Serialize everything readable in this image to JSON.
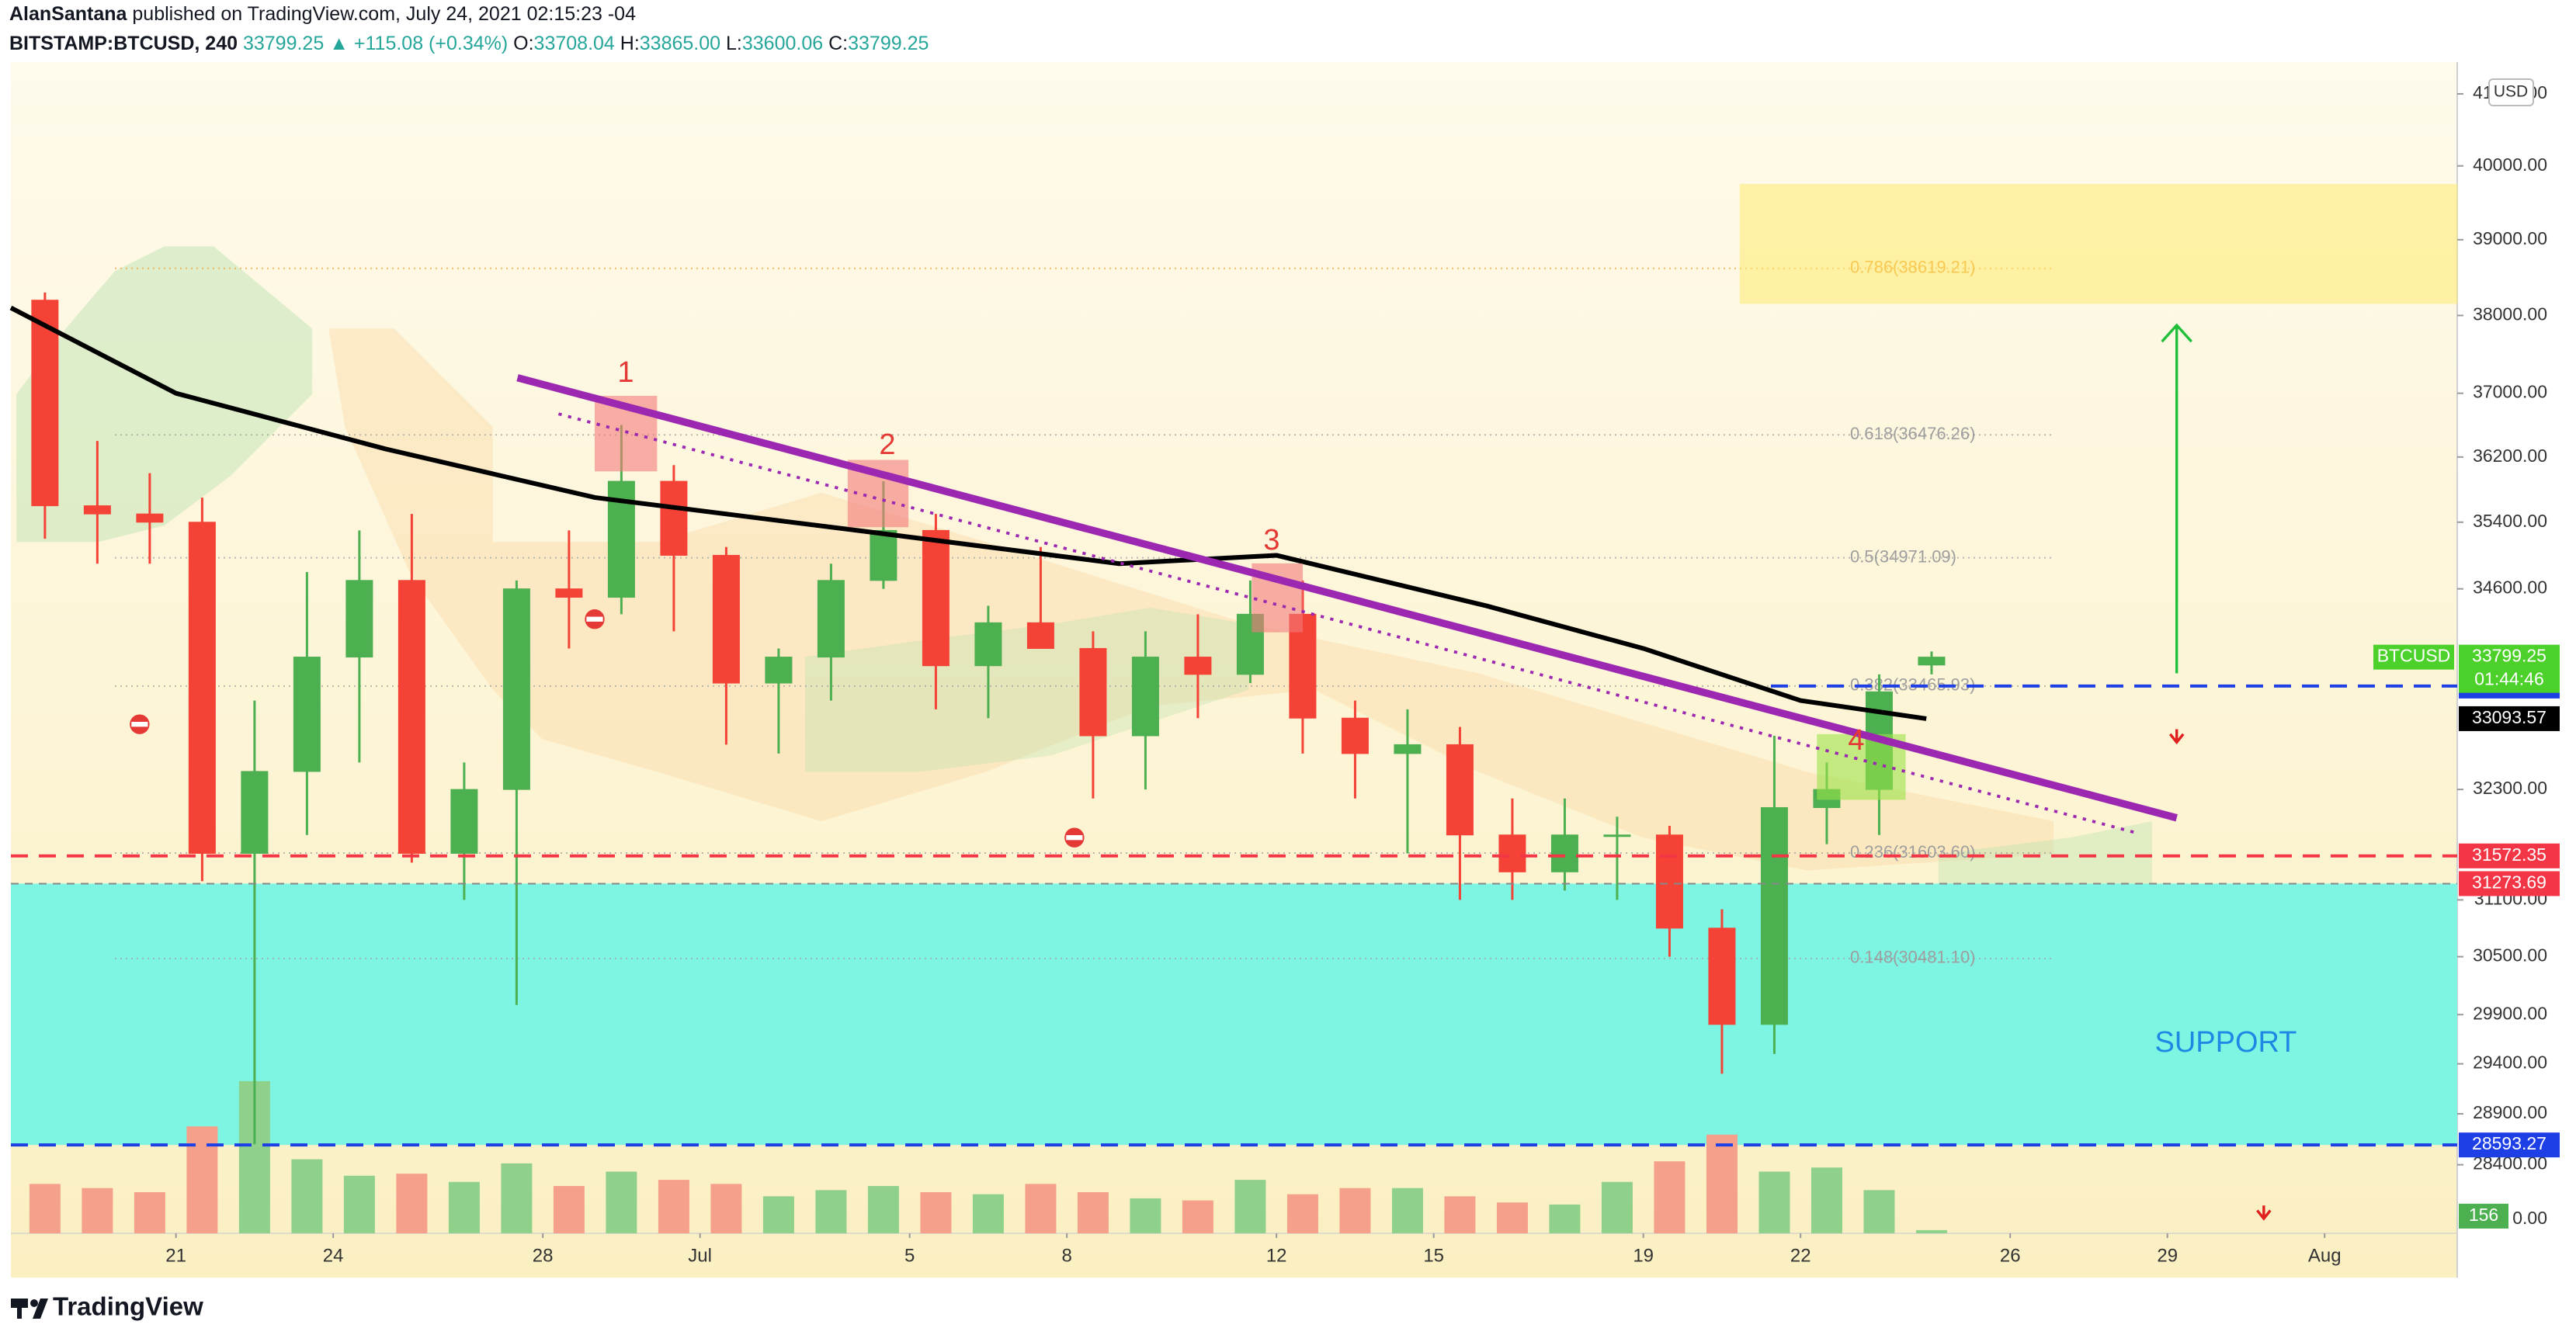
{
  "header": {
    "author": "AlanSantana",
    "published": "published on TradingView.com, July 24, 2021 02:15:23 -04",
    "symbol": "BITSTAMP:BTCUSD, 240",
    "last": "33799.25",
    "change": "▲ +115.08 (+0.34%)",
    "ohlc": [
      {
        "key": "O:",
        "value": "33708.04"
      },
      {
        "key": "H:",
        "value": "33865.00"
      },
      {
        "key": "L:",
        "value": "33600.06"
      },
      {
        "key": "C:",
        "value": "33799.25"
      }
    ]
  },
  "chart_data": {
    "type": "candlestick",
    "log_scale": true,
    "currency": "USD",
    "symbol_tag": "BTCUSD",
    "countdown": "01:44:46",
    "up_color": "#4caf50",
    "down_color": "#f44336",
    "volume_up_color": "#8fd18a",
    "volume_down_color": "#f5a08a",
    "ylim": [
      27740,
      41306
    ],
    "yticks": [
      {
        "value": 41000,
        "label": "41000.00"
      },
      {
        "value": 40000,
        "label": "40000.00"
      },
      {
        "value": 39000,
        "label": "39000.00"
      },
      {
        "value": 38000,
        "label": "38000.00"
      },
      {
        "value": 37000,
        "label": "37000.00"
      },
      {
        "value": 36200,
        "label": "36200.00"
      },
      {
        "value": 35400,
        "label": "35400.00"
      },
      {
        "value": 34600,
        "label": "34600.00"
      },
      {
        "value": 32300,
        "label": "32300.00"
      },
      {
        "value": 31100,
        "label": "31100.00"
      },
      {
        "value": 30500,
        "label": "30500.00"
      },
      {
        "value": 29900,
        "label": "29900.00"
      },
      {
        "value": 29400,
        "label": "29400.00"
      },
      {
        "value": 28900,
        "label": "28900.00"
      },
      {
        "value": 28400,
        "label": "28400.00"
      }
    ],
    "xlim": [
      168.85,
      215.53
    ],
    "xticks": [
      {
        "value": 172,
        "label": "21"
      },
      {
        "value": 175,
        "label": "24"
      },
      {
        "value": 179,
        "label": "28"
      },
      {
        "value": 182,
        "label": "Jul"
      },
      {
        "value": 186,
        "label": "5"
      },
      {
        "value": 189,
        "label": "8"
      },
      {
        "value": 193,
        "label": "12"
      },
      {
        "value": 196,
        "label": "15"
      },
      {
        "value": 200,
        "label": "19"
      },
      {
        "value": 203,
        "label": "22"
      },
      {
        "value": 207,
        "label": "26"
      },
      {
        "value": 210,
        "label": "29"
      },
      {
        "value": 213,
        "label": "Aug"
      }
    ],
    "x": [
      169,
      170,
      171,
      172,
      173,
      174,
      175,
      176,
      177,
      178,
      179,
      180,
      181,
      182,
      183,
      184,
      185,
      186,
      187,
      188,
      189,
      190,
      191,
      192,
      193,
      194,
      195,
      196,
      197,
      198,
      199,
      200,
      201,
      202,
      203,
      204,
      205
    ],
    "open": [
      38200,
      35600,
      35500,
      35400,
      31600,
      32500,
      33800,
      34700,
      31600,
      32300,
      34600,
      34500,
      35900,
      35000,
      33500,
      33800,
      34700,
      35300,
      33700,
      34200,
      33900,
      32900,
      33800,
      33600,
      34300,
      33100,
      32700,
      32800,
      31800,
      31400,
      31800,
      31800,
      30800,
      29800,
      32100,
      32300,
      33708.04
    ],
    "high": [
      38300,
      36400,
      36000,
      35700,
      33300,
      34800,
      35300,
      35500,
      32600,
      34700,
      35300,
      36600,
      36100,
      35100,
      33900,
      34900,
      35900,
      35500,
      34400,
      35100,
      34100,
      34100,
      34300,
      34700,
      34700,
      33300,
      33200,
      33000,
      32200,
      32200,
      32000,
      31900,
      31000,
      32900,
      32600,
      33600,
      33865
    ],
    "low": [
      35200,
      34900,
      34900,
      31300,
      28600,
      31800,
      32600,
      31500,
      31100,
      30000,
      33900,
      34300,
      34100,
      32800,
      32700,
      33300,
      34600,
      33200,
      33100,
      33900,
      32200,
      32300,
      33100,
      33500,
      32700,
      32200,
      31600,
      31100,
      31100,
      31200,
      31100,
      30500,
      29300,
      29500,
      31700,
      31800,
      33600.06
    ],
    "close": [
      35600,
      35500,
      35400,
      31600,
      32500,
      33800,
      34700,
      31600,
      32300,
      34600,
      34500,
      35900,
      35000,
      33500,
      33800,
      34700,
      35300,
      33700,
      34200,
      33900,
      32900,
      33800,
      33600,
      34300,
      33100,
      32700,
      32800,
      31800,
      31400,
      31800,
      31800,
      30800,
      29800,
      32100,
      32300,
      33400,
      33799.25
    ],
    "volume": [
      2400,
      2200,
      2000,
      5200,
      7400,
      3600,
      2800,
      2900,
      2500,
      3400,
      2300,
      3000,
      2600,
      2400,
      1800,
      2100,
      2300,
      2000,
      1900,
      2400,
      2000,
      1700,
      1600,
      2600,
      1900,
      2200,
      2200,
      1800,
      1500,
      1400,
      2500,
      3500,
      4800,
      3000,
      3200,
      2100,
      156
    ],
    "vlim": [
      0,
      8000
    ],
    "vticks": [
      {
        "value": 0,
        "label": "0.00"
      }
    ],
    "moving_average": {
      "color": "#000000",
      "x": [
        168.85,
        172,
        176,
        180,
        185,
        190,
        193,
        197,
        200,
        203,
        205.4
      ],
      "values": [
        38100,
        37000,
        36300,
        35700,
        35300,
        34900,
        35000,
        34400,
        33900,
        33300,
        33093.57
      ]
    },
    "levels": [
      {
        "value": 33465.93,
        "color": "#1e3fe6",
        "line_color": "#1e3fe6"
      },
      {
        "value": 31572.35,
        "color": "#f23645",
        "line_color": "#f23645"
      },
      {
        "value": 31273.69,
        "color": "#f23645",
        "line_color": "#888888"
      },
      {
        "value": 28593.27,
        "color": "#1e3fe6",
        "line_color": "#1e3fe6"
      }
    ],
    "fib": [
      {
        "value": 38619.21,
        "label": "0.786(38619.21)",
        "color": "#f0a030"
      },
      {
        "value": 36476.26,
        "label": "0.618(36476.26)",
        "color": "#9e9e9e"
      },
      {
        "value": 34971.09,
        "label": "0.5(34971.09)",
        "color": "#9e9e9e"
      },
      {
        "value": 33465.93,
        "label": "0.382(33465.93)",
        "color": "#9e9e9e"
      },
      {
        "value": 31603.6,
        "label": "0.236(31603.60)",
        "color": "#9e9e9e"
      },
      {
        "value": 30481.1,
        "label": "0.148(30481.10)",
        "color": "#9e9e9e"
      }
    ],
    "waves": [
      "1",
      "2",
      "3",
      "4"
    ],
    "zone_label": "SUPPORT"
  },
  "footer": {
    "brand": "TradingView"
  }
}
